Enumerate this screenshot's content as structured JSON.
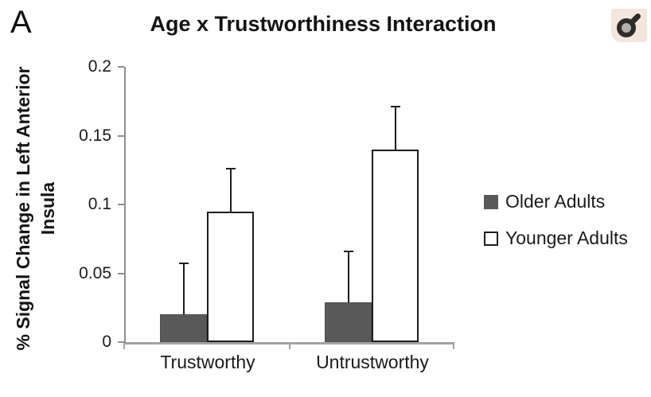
{
  "figure": {
    "panel_label": "A",
    "header_icon": {
      "name": "male-symbol-icon",
      "glyph": "♂",
      "background": "#f4e6dc",
      "stroke": "#2e2b28",
      "inner_fill": "#b5b0ab"
    }
  },
  "chart_data": {
    "type": "bar",
    "title": "Age x Trustworthiness Interaction",
    "xlabel": "",
    "ylabel_line1": "% Signal Change in Left Anterior",
    "ylabel_line2": "Insula",
    "categories": [
      "Trustworthy",
      "Untrustworthy"
    ],
    "series": [
      {
        "name": "Older Adults",
        "values": [
          0.02,
          0.029
        ],
        "errors": [
          0.037,
          0.037
        ],
        "fill": "#595959",
        "border": "#4f4f4f"
      },
      {
        "name": "Younger Adults",
        "values": [
          0.095,
          0.14
        ],
        "errors": [
          0.031,
          0.031
        ],
        "fill": "#ffffff",
        "border": "#1d1d1d"
      }
    ],
    "ylim": [
      0,
      0.2
    ],
    "y_ticks": [
      0,
      0.05,
      0.1,
      0.15,
      0.2
    ],
    "y_tick_labels": [
      "0",
      "0.05",
      "0.1",
      "0.15",
      "0.2"
    ],
    "error_bars": "upper",
    "grid": false,
    "legend_position": "right"
  }
}
